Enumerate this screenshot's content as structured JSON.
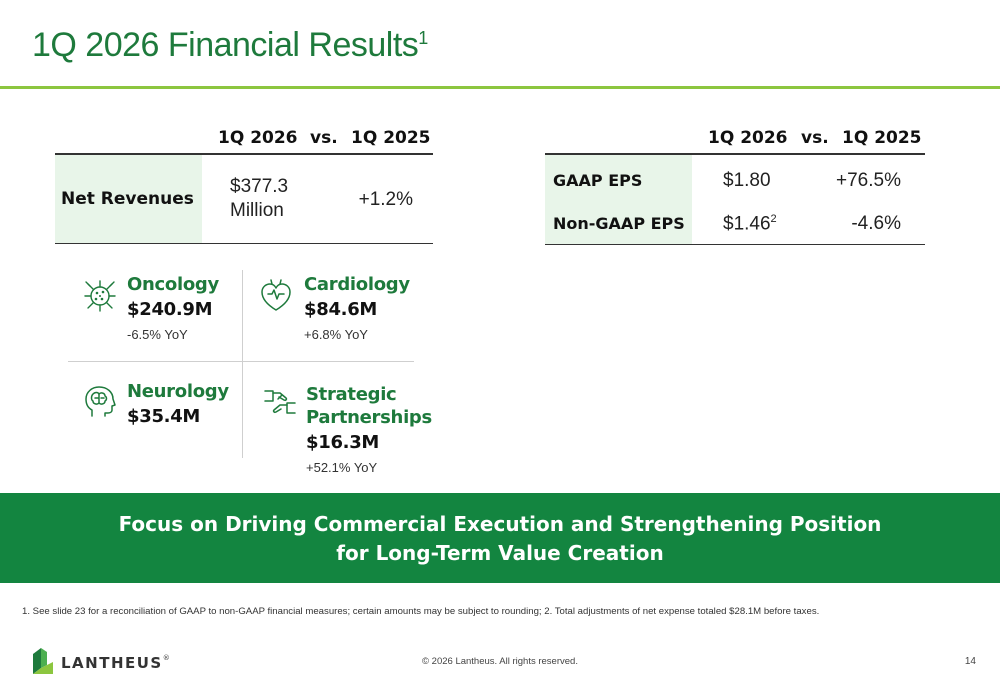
{
  "header": {
    "title": "1Q 2026 Financial Results",
    "title_sup": "1"
  },
  "revenue_table": {
    "col1": "1Q 2026",
    "vs": "vs.",
    "col2": "1Q 2025",
    "row": {
      "label": "Net Revenues",
      "value_line1": "$377.3",
      "value_line2": "Million",
      "change": "+1.2%"
    }
  },
  "eps_table": {
    "col1": "1Q 2026",
    "vs": "vs.",
    "col2": "1Q 2025",
    "rows": [
      {
        "label": "GAAP EPS",
        "value": "$1.80",
        "sup": "",
        "change": "+76.5%"
      },
      {
        "label": "Non-GAAP EPS",
        "value": "$1.46",
        "sup": "2",
        "change": "-4.6%"
      }
    ]
  },
  "segments": [
    {
      "name": "Oncology",
      "amount": "$240.9M",
      "yoy": "-6.5% YoY",
      "icon": "cell-icon"
    },
    {
      "name": "Cardiology",
      "amount": "$84.6M",
      "yoy": "+6.8% YoY",
      "icon": "heart-icon"
    },
    {
      "name": "Neurology",
      "amount": "$35.4M",
      "yoy": "",
      "icon": "brain-icon"
    },
    {
      "name_line1": "Strategic",
      "name_line2": "Partnerships",
      "amount": "$16.3M",
      "yoy": "+52.1% YoY",
      "icon": "handshake-icon"
    }
  ],
  "banner": {
    "line1": "Focus on Driving Commercial Execution and Strengthening Position",
    "line2": "for Long-Term Value Creation"
  },
  "footnote": "1. See slide 23 for a reconciliation of GAAP to non-GAAP financial measures; certain amounts may be subject to rounding; 2. Total adjustments of net expense totaled $28.1M before taxes.",
  "footer": {
    "logo": "LANTHEUS",
    "logo_tm": "®",
    "copyright": "© 2026 Lantheus. All rights reserved.",
    "page": "14"
  },
  "colors": {
    "brand_green": "#1e7a3c",
    "rule_green": "#8cc63f",
    "banner_green": "#138540",
    "cell_tint": "#e8f5e9"
  }
}
